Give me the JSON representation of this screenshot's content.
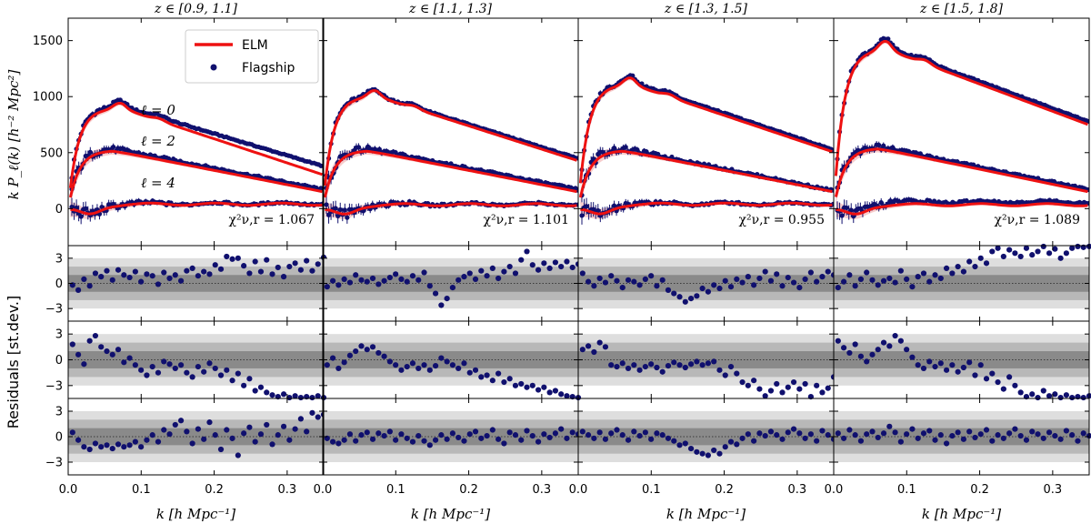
{
  "chart_data": {
    "type": "line",
    "title": "",
    "description_labels": {
      "ylabel_top": "k P_ℓ(k) [h⁻² Mpc²]",
      "ylabel_residuals": "Residuals [st.dev.]",
      "xlabel": "k [h Mpc⁻¹]",
      "multipole_labels": [
        "ℓ = 0",
        "ℓ = 2",
        "ℓ = 4"
      ]
    },
    "legend": {
      "position": "top-left of first panel",
      "entries": [
        "ELM",
        "Flagship"
      ]
    },
    "colors": {
      "model": "#ee1111",
      "data": "#10106e",
      "band": "#f4b8b8",
      "sigma1": "#8a8a8a",
      "sigma2": "#b8b8b8",
      "sigma3": "#dedede"
    },
    "xlim": [
      0.0,
      0.35
    ],
    "x_ticks": [
      0.0,
      0.1,
      0.2,
      0.3
    ],
    "x_tick_labels": [
      "0.0",
      "0.1",
      "0.2",
      "0.3"
    ],
    "top_ylim": [
      -330,
      1700
    ],
    "top_y_ticks": [
      0,
      500,
      1000,
      1500
    ],
    "top_y_tick_labels": [
      "0",
      "500",
      "1000",
      "1500"
    ],
    "residual_ylim": [
      -4.5,
      4.5
    ],
    "residual_y_ticks": [
      -3,
      0,
      3
    ],
    "residual_y_tick_labels": [
      "−3",
      "0",
      "3"
    ],
    "panels": [
      {
        "title": "z ∈ [0.9, 1.1]",
        "chi2_label": "χ²ν,r = 1.067",
        "chi2_value": 1.067,
        "model": {
          "p0_peak": 920,
          "p0_end": 310,
          "p2_peak": 520,
          "p2_end": 150,
          "p4_end": 40
        },
        "data": {
          "p0_peak": 940,
          "p0_end": 390,
          "p2_peak": 540,
          "p2_end": 170,
          "p4_end": 45
        },
        "residuals": {
          "l0": [
            -0.2,
            -0.8,
            0.5,
            -0.3,
            1.2,
            0.8,
            1.5,
            0.4,
            1.6,
            1.0,
            0.7,
            1.4,
            0.2,
            1.1,
            0.9,
            -0.1,
            1.3,
            0.6,
            1.0,
            0.3,
            1.5,
            1.8,
            0.9,
            1.4,
            1.1,
            2.2,
            1.7,
            3.2,
            2.9,
            3.0,
            2.1,
            1.2,
            2.6,
            1.4,
            2.8,
            1.1,
            1.9,
            0.8,
            2.0,
            2.4,
            1.6,
            2.7,
            1.5,
            2.3,
            3.1
          ],
          "l2": [
            1.8,
            0.6,
            -0.5,
            2.2,
            2.8,
            1.5,
            1.0,
            0.6,
            1.2,
            -0.3,
            0.2,
            -0.6,
            -1.2,
            -1.8,
            -0.8,
            -1.5,
            -0.2,
            -0.5,
            -1.0,
            -0.6,
            -1.5,
            -2.0,
            -0.8,
            -1.4,
            -0.4,
            -1.0,
            -1.8,
            -1.2,
            -2.4,
            -1.6,
            -3.0,
            -2.2,
            -3.6,
            -3.2,
            -3.8,
            -4.1,
            -4.3,
            -4.0,
            -4.4,
            -4.2,
            -4.4,
            -4.3,
            -4.4,
            -4.2,
            -4.4
          ],
          "l4": [
            0.5,
            -0.4,
            -1.2,
            -1.5,
            -0.8,
            -1.2,
            -1.0,
            -1.4,
            -0.9,
            -1.2,
            -1.0,
            -0.6,
            -1.2,
            -0.4,
            0.2,
            -0.6,
            0.8,
            0.3,
            1.4,
            1.9,
            0.6,
            -0.8,
            0.9,
            -0.3,
            1.7,
            0.2,
            -1.5,
            0.8,
            -0.2,
            -2.2,
            0.4,
            1.1,
            -0.6,
            0.3,
            1.4,
            -0.9,
            0.2,
            1.2,
            -0.4,
            0.9,
            2.1,
            0.6,
            2.8,
            2.3,
            2.6
          ]
        }
      },
      {
        "title": "z ∈ [1.1, 1.3]",
        "chi2_label": "χ²ν,r = 1.101",
        "chi2_value": 1.101,
        "model": {
          "p0_peak": 1030,
          "p0_end": 440,
          "p2_peak": 520,
          "p2_end": 150,
          "p4_end": 35
        },
        "data": {
          "p0_peak": 1040,
          "p0_end": 460,
          "p2_peak": 540,
          "p2_end": 170,
          "p4_end": 40
        },
        "residuals": {
          "l0": [
            -0.4,
            0.3,
            -0.2,
            0.5,
            0.1,
            1.0,
            0.4,
            0.2,
            0.6,
            -0.1,
            0.3,
            0.7,
            1.1,
            0.5,
            0.2,
            0.9,
            0.4,
            1.3,
            -0.3,
            -1.2,
            -2.6,
            -1.8,
            -0.5,
            0.4,
            0.8,
            1.2,
            0.5,
            1.5,
            0.9,
            1.8,
            0.6,
            1.4,
            2.0,
            1.2,
            2.8,
            3.8,
            2.2,
            1.6,
            2.4,
            1.8,
            2.5,
            2.0,
            2.6,
            1.9,
            2.3
          ],
          "l2": [
            -0.6,
            0.2,
            -1.0,
            -0.3,
            0.5,
            1.0,
            1.6,
            1.2,
            1.5,
            0.8,
            0.4,
            -0.2,
            -0.6,
            -1.2,
            -0.8,
            -0.4,
            -1.0,
            -0.6,
            -1.2,
            -0.7,
            0.2,
            -0.2,
            -0.6,
            -1.0,
            -0.4,
            -1.5,
            -1.2,
            -2.0,
            -1.8,
            -2.4,
            -1.6,
            -2.6,
            -2.2,
            -3.0,
            -2.8,
            -3.2,
            -3.0,
            -3.5,
            -3.2,
            -3.8,
            -3.6,
            -4.0,
            -4.2,
            -4.3,
            -4.4
          ],
          "l4": [
            -0.2,
            -0.6,
            -0.8,
            -0.4,
            0.3,
            -0.5,
            0.2,
            0.5,
            -0.3,
            0.4,
            0.1,
            0.6,
            -0.4,
            0.3,
            -0.2,
            -0.6,
            0.1,
            -0.5,
            -1.0,
            -0.4,
            0.2,
            -0.3,
            0.4,
            -0.1,
            -0.5,
            0.3,
            0.6,
            -0.2,
            0.1,
            0.8,
            -0.3,
            -0.8,
            0.5,
            0.2,
            -0.4,
            0.7,
            0.1,
            -0.6,
            0.3,
            -0.1,
            0.4,
            0.9,
            -0.2,
            0.5,
            0.3
          ]
        }
      },
      {
        "title": "z ∈ [1.3, 1.5]",
        "chi2_label": "χ²ν,r = 0.955",
        "chi2_value": 0.955,
        "model": {
          "p0_peak": 1140,
          "p0_end": 520,
          "p2_peak": 520,
          "p2_end": 150,
          "p4_end": 40
        },
        "data": {
          "p0_peak": 1160,
          "p0_end": 540,
          "p2_peak": 540,
          "p2_end": 160,
          "p4_end": 45
        },
        "residuals": {
          "l0": [
            1.2,
            0.2,
            -0.3,
            0.6,
            0.1,
            0.9,
            0.3,
            -0.5,
            0.4,
            0.2,
            -0.2,
            0.5,
            0.9,
            -0.3,
            0.4,
            -0.8,
            -1.2,
            -1.6,
            -2.2,
            -1.8,
            -1.5,
            -0.6,
            -1.0,
            -0.2,
            -0.6,
            0.3,
            -0.4,
            0.5,
            0.1,
            0.8,
            -0.2,
            0.6,
            1.4,
            0.3,
            1.1,
            -0.3,
            0.7,
            0.1,
            -0.5,
            0.5,
            1.3,
            0.2,
            0.8,
            1.4,
            1.0
          ],
          "l2": [
            1.2,
            1.6,
            0.9,
            2.0,
            1.5,
            -0.6,
            -0.8,
            -0.4,
            -1.0,
            -0.6,
            -1.2,
            -0.8,
            -0.5,
            -0.9,
            -1.4,
            -0.7,
            -0.3,
            -0.6,
            -0.9,
            -0.5,
            -0.2,
            -0.6,
            -0.4,
            -0.2,
            -1.2,
            -1.8,
            -0.8,
            -1.6,
            -2.6,
            -3.0,
            -2.4,
            -3.4,
            -4.2,
            -3.6,
            -2.8,
            -3.8,
            -3.2,
            -2.6,
            -3.4,
            -2.8,
            -4.3,
            -3.0,
            -3.8,
            -3.3,
            -2.0
          ],
          "l4": [
            0.6,
            0.2,
            -0.2,
            0.5,
            -0.3,
            0.4,
            0.8,
            0.2,
            -0.4,
            0.6,
            0.1,
            0.5,
            -0.3,
            0.4,
            0.2,
            -0.2,
            -0.5,
            -1.0,
            -0.8,
            -1.4,
            -1.8,
            -2.0,
            -2.2,
            -1.6,
            -2.0,
            -1.2,
            -0.6,
            -0.9,
            -0.2,
            0.3,
            -0.5,
            0.4,
            0.1,
            0.6,
            0.2,
            -0.3,
            0.5,
            0.9,
            0.4,
            -0.2,
            0.3,
            -0.5,
            0.7,
            0.2,
            -0.3
          ]
        }
      },
      {
        "title": "z ∈ [1.5, 1.8]",
        "chi2_label": "χ²ν,r = 1.089",
        "chi2_value": 1.089,
        "model": {
          "p0_peak": 1460,
          "p0_end": 770,
          "p2_peak": 540,
          "p2_end": 150,
          "p4_end": 35
        },
        "data": {
          "p0_peak": 1480,
          "p0_end": 800,
          "p2_peak": 560,
          "p2_end": 170,
          "p4_end": 60
        },
        "residuals": {
          "l0": [
            -0.5,
            0.2,
            1.0,
            -0.3,
            0.5,
            1.3,
            0.4,
            -0.2,
            0.3,
            0.6,
            0.1,
            1.5,
            0.5,
            -0.4,
            0.8,
            1.2,
            0.2,
            1.0,
            0.6,
            1.8,
            1.2,
            2.0,
            1.4,
            2.6,
            2.0,
            3.0,
            2.4,
            3.8,
            4.2,
            3.2,
            4.0,
            3.6,
            3.2,
            4.2,
            3.4,
            3.8,
            4.4,
            3.6,
            4.1,
            3.0,
            3.6,
            4.2,
            4.4,
            4.3,
            4.4
          ],
          "l2": [
            2.2,
            1.4,
            0.8,
            1.8,
            0.4,
            -0.2,
            0.6,
            1.2,
            2.0,
            1.6,
            2.8,
            2.2,
            1.2,
            0.3,
            -0.6,
            -1.0,
            -0.2,
            -0.8,
            -0.4,
            -1.2,
            -0.6,
            -1.4,
            -0.9,
            -0.3,
            -1.8,
            -0.6,
            -2.2,
            -1.6,
            -2.6,
            -3.4,
            -2.0,
            -3.0,
            -3.8,
            -4.3,
            -4.0,
            -4.4,
            -3.6,
            -4.2,
            -4.0,
            -4.4,
            -4.1,
            -4.4,
            -4.3,
            -4.4,
            -4.2
          ],
          "l4": [
            0.4,
            -0.2,
            0.8,
            0.2,
            -0.5,
            0.3,
            0.6,
            -0.1,
            0.4,
            1.2,
            0.5,
            -0.6,
            0.3,
            0.9,
            -0.2,
            0.4,
            0.7,
            -0.4,
            0.2,
            -0.8,
            0.1,
            0.5,
            -0.3,
            0.6,
            -0.1,
            0.3,
            0.8,
            -0.5,
            0.2,
            -0.2,
            0.4,
            0.9,
            0.1,
            -0.4,
            0.6,
            0.3,
            -0.2,
            0.5,
            0.1,
            -0.3,
            0.7,
            0.2,
            -0.5,
            0.4,
            0.1
          ]
        }
      }
    ]
  }
}
